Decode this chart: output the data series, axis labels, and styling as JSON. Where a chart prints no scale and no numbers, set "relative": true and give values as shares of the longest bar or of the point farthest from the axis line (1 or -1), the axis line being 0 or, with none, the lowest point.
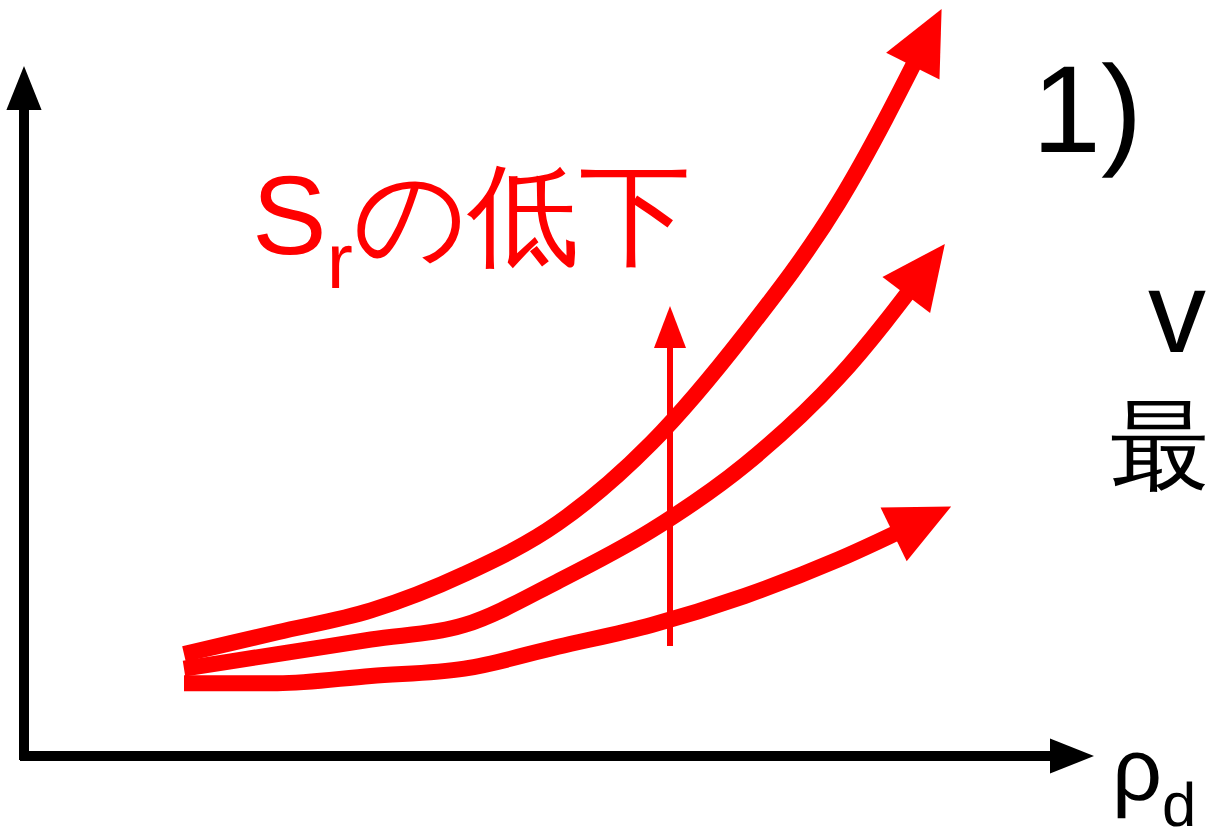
{
  "chart_data": {
    "type": "line",
    "relative": true,
    "xlabel": "ρ$_{d}$",
    "line_style": "solid",
    "categories": [
      null,
      null,
      null,
      null,
      null,
      null,
      null,
      null,
      null
    ],
    "series": [
      {
        "color": "#ff0000",
        "values": [
          0.14,
          0.17,
          0.2,
          0.25,
          0.32,
          0.43,
          0.58,
          0.76,
          1
        ]
      },
      {
        "color": "#ff0000",
        "values": [
          0.12,
          0.14,
          0.16,
          0.18,
          0.24,
          0.31,
          0.4,
          0.52,
          0.68
        ]
      },
      {
        "color": "#ff0000",
        "values": [
          0.1,
          0.1,
          0.11,
          0.12,
          0.15,
          0.18,
          0.22,
          0.27,
          0.33
        ]
      }
    ],
    "annotations": [
      "S$_{r}$の低下",
      "1)",
      "v",
      "最"
    ]
  }
}
